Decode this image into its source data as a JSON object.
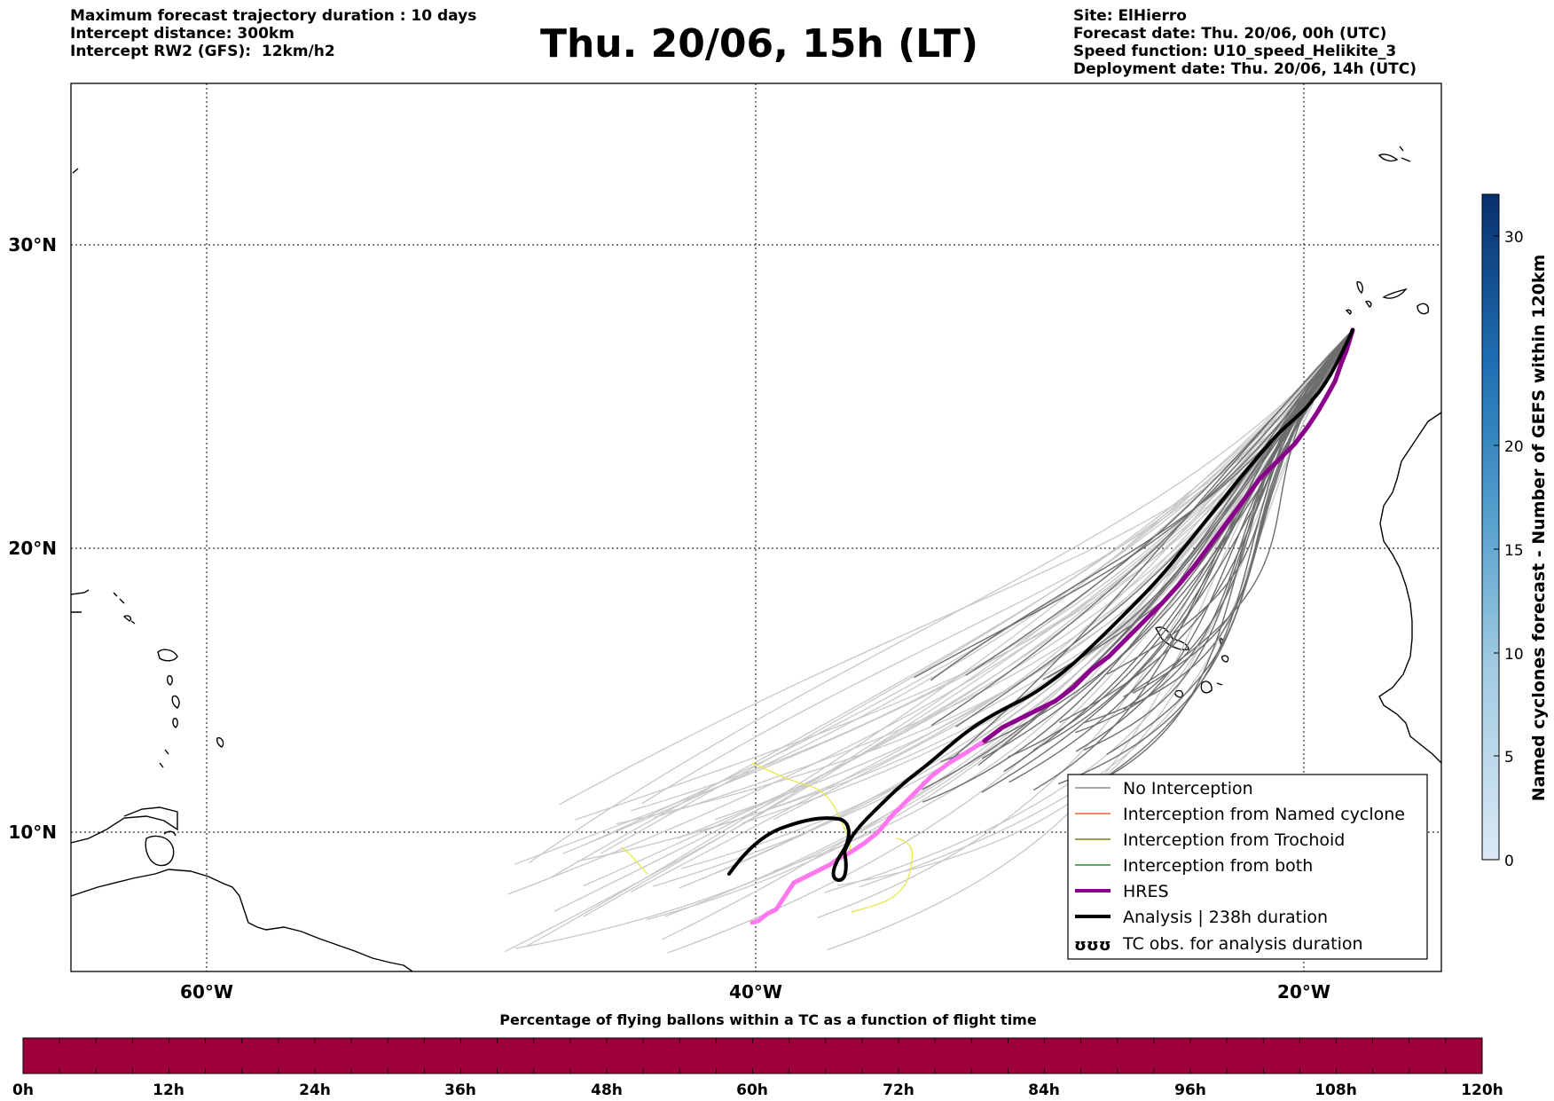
{
  "header": {
    "left_lines": [
      "Maximum forecast trajectory duration : 10 days",
      "Intercept distance: 300km",
      "Intercept RW2 (GFS):  12km/h2"
    ],
    "title": "Thu. 20/06, 15h (LT)",
    "right_lines": [
      "Site: ElHierro",
      "Forecast date: Thu. 20/06, 00h (UTC)",
      "Speed function: U10_speed_Helikite_3",
      "Deployment date: Thu. 20/06, 14h (UTC)"
    ]
  },
  "map": {
    "lat_labels": [
      "30°N",
      "20°N",
      "10°N"
    ],
    "lon_labels": [
      "60°W",
      "40°W",
      "20°W"
    ]
  },
  "legend": {
    "items": [
      {
        "label": "No Interception",
        "color": "#8c8c8c"
      },
      {
        "label": "Interception from Named cyclone",
        "color": "#e8632b"
      },
      {
        "label": "Interception from Trochoid",
        "color": "#7a7a1e"
      },
      {
        "label": "Interception from both",
        "color": "#2e8b2e"
      },
      {
        "label": "HRES",
        "color": "#8b008b"
      },
      {
        "label": "Analysis | 238h duration",
        "color": "#000000"
      },
      {
        "label": "TC obs. for analysis duration",
        "color": "#000000",
        "symbol": "ʊʊʊ"
      }
    ]
  },
  "colorbar_right": {
    "label": "Named cyclones forecast - Number of GEFS within 120km",
    "ticks": [
      "0",
      "5",
      "10",
      "15",
      "20",
      "30"
    ],
    "colors": [
      "#d8e6f5",
      "#08306b"
    ]
  },
  "colorbar_bottom": {
    "title": "Percentage of flying ballons within a TC as a function of flight time",
    "ticks": [
      "0h",
      "12h",
      "24h",
      "36h",
      "48h",
      "60h",
      "72h",
      "84h",
      "96h",
      "108h",
      "120h"
    ],
    "fill_color": "#9e003a"
  }
}
